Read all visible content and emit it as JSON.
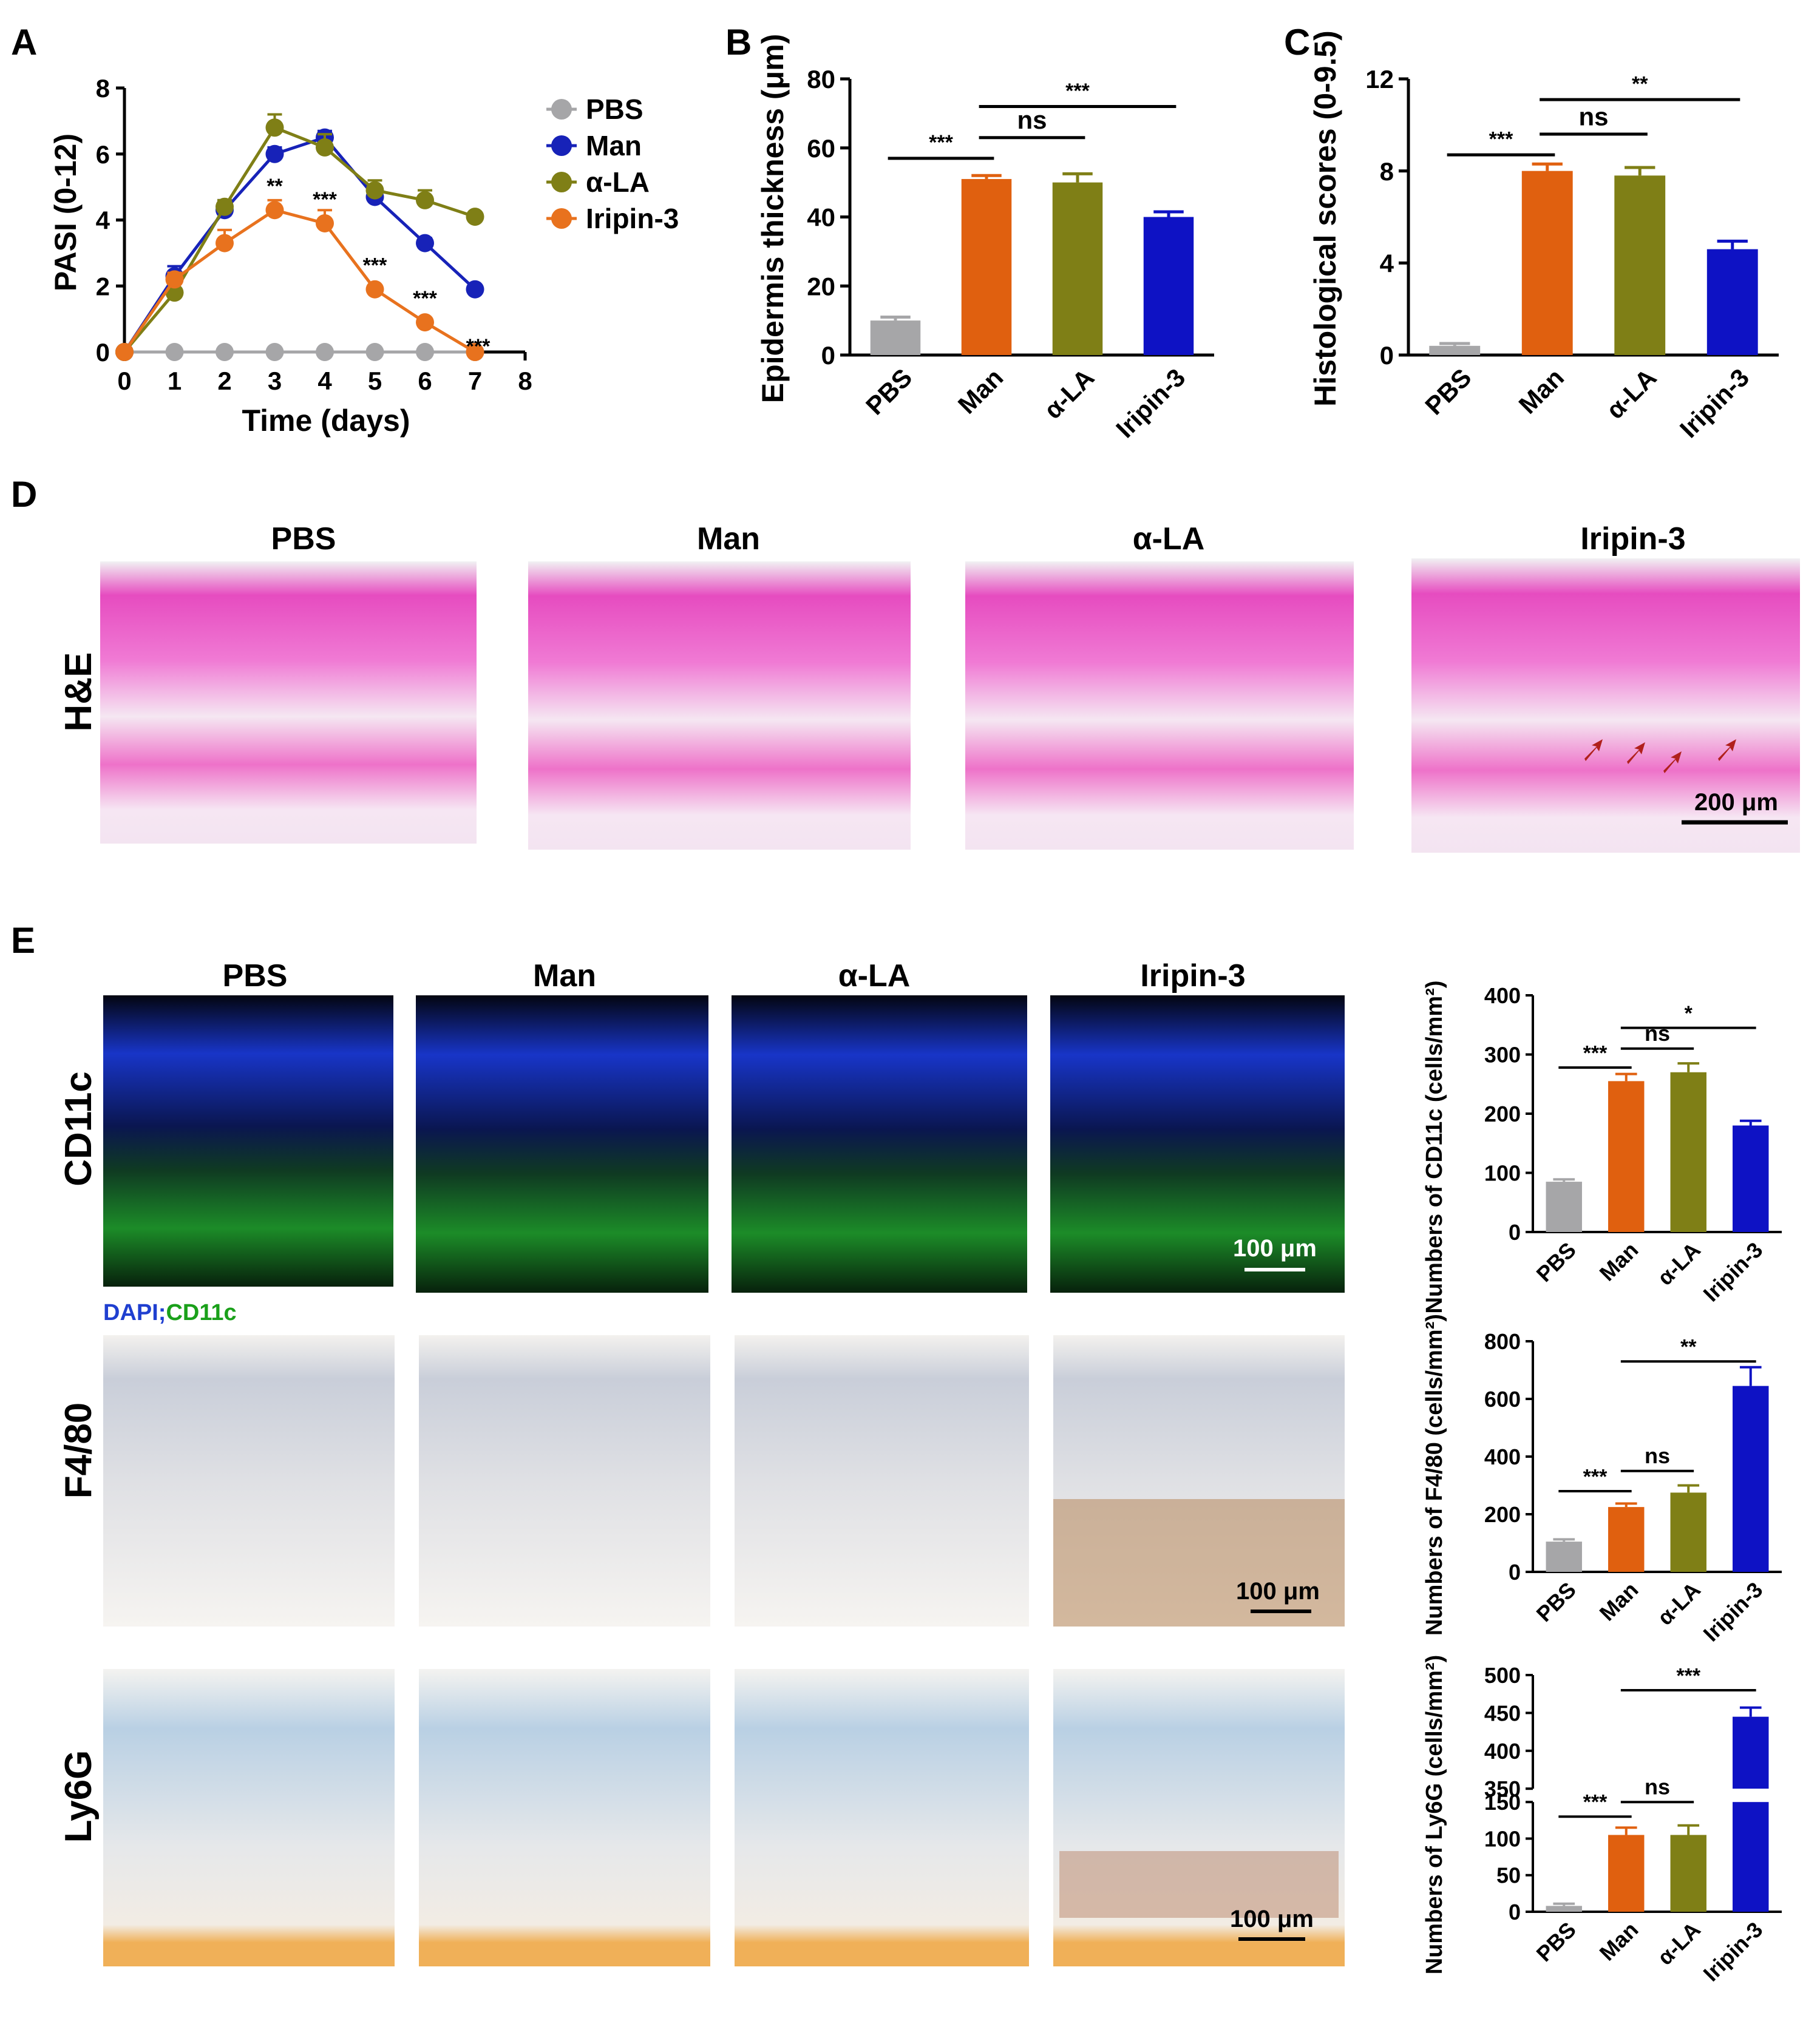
{
  "colors": {
    "PBS": "#a6a6a8",
    "Man": "#e0600f",
    "α-LA": "#7f7f16",
    "Iripin-3": "#0e12c4",
    "Iripin-3-line": "#e8721e",
    "Man-line": "#1722b8",
    "dapi": "#1f3fd0",
    "cd11c": "#1aa01a"
  },
  "panels": {
    "A": "A",
    "B": "B",
    "C": "C",
    "D": "D",
    "E": "E"
  },
  "chart_data": [
    {
      "id": "A",
      "type": "line",
      "xlabel": "Time (days)",
      "ylabel": "PASI (0-12)",
      "xlim": [
        0,
        8
      ],
      "ylim": [
        0,
        8
      ],
      "xticks": [
        "0",
        "1",
        "2",
        "3",
        "4",
        "5",
        "6",
        "7",
        "8"
      ],
      "yticks": [
        "0",
        "2",
        "4",
        "6",
        "8"
      ],
      "x": [
        0,
        1,
        2,
        3,
        4,
        5,
        6,
        7
      ],
      "legend_position": "right",
      "series": [
        {
          "name": "PBS",
          "color_key": "PBS",
          "values": [
            0,
            0,
            0,
            0,
            0,
            0,
            0,
            0
          ],
          "err": [
            0,
            0,
            0,
            0,
            0,
            0,
            0,
            0
          ]
        },
        {
          "name": "Man",
          "color_key": "Man-line",
          "values": [
            0,
            2.3,
            4.3,
            6.0,
            6.5,
            4.7,
            3.3,
            1.9
          ],
          "err": [
            0,
            0.3,
            0.3,
            0.2,
            0.2,
            0.3,
            0.15,
            0.1
          ]
        },
        {
          "name": "α-LA",
          "color_key": "α-LA",
          "values": [
            0,
            1.8,
            4.4,
            6.8,
            6.2,
            4.9,
            4.6,
            4.1
          ],
          "err": [
            0,
            0.3,
            0.2,
            0.4,
            0.4,
            0.3,
            0.3,
            0.1
          ]
        },
        {
          "name": "Iripin-3",
          "color_key": "Iripin-3-line",
          "values": [
            0,
            2.2,
            3.3,
            4.3,
            3.9,
            1.9,
            0.9,
            0
          ],
          "err": [
            0,
            0.2,
            0.4,
            0.3,
            0.4,
            0.1,
            0.1,
            0
          ]
        }
      ],
      "annotations": [
        {
          "x": 3,
          "y": 4.3,
          "text": "**"
        },
        {
          "x": 4,
          "y": 3.9,
          "text": "***"
        },
        {
          "x": 5,
          "y": 1.9,
          "text": "***"
        },
        {
          "x": 6,
          "y": 0.9,
          "text": "***"
        },
        {
          "x": 7,
          "y": 0,
          "text": "***"
        }
      ]
    },
    {
      "id": "B",
      "type": "bar",
      "ylabel": "Epidermis thickness (μm)",
      "ylim": [
        0,
        80
      ],
      "yticks": [
        "0",
        "20",
        "40",
        "60",
        "80"
      ],
      "categories": [
        "PBS",
        "Man",
        "α-LA",
        "Iripin-3"
      ],
      "values": [
        10,
        51,
        50,
        40
      ],
      "err": [
        1,
        1,
        2.5,
        1.5
      ],
      "brackets": [
        {
          "from": 0,
          "to": 1,
          "text": "***",
          "y": 57
        },
        {
          "from": 1,
          "to": 2,
          "text": "ns",
          "y": 63
        },
        {
          "from": 1,
          "to": 3,
          "text": "***",
          "y": 72
        }
      ]
    },
    {
      "id": "C",
      "type": "bar",
      "ylabel": "Histological scores (0-9.5)",
      "ylim": [
        0,
        12
      ],
      "yticks": [
        "0",
        "4",
        "8",
        "12"
      ],
      "categories": [
        "PBS",
        "Man",
        "α-LA",
        "Iripin-3"
      ],
      "values": [
        0.4,
        8.0,
        7.8,
        4.6
      ],
      "err": [
        0.1,
        0.3,
        0.35,
        0.35
      ],
      "brackets": [
        {
          "from": 0,
          "to": 1,
          "text": "***",
          "y": 8.7
        },
        {
          "from": 1,
          "to": 2,
          "text": "ns",
          "y": 9.6
        },
        {
          "from": 1,
          "to": 3,
          "text": "**",
          "y": 11.1
        }
      ]
    },
    {
      "id": "E1",
      "type": "bar",
      "ylabel": "Numbers of CD11c (cells/mm²)",
      "ylim": [
        0,
        400
      ],
      "yticks": [
        "0",
        "100",
        "200",
        "300",
        "400"
      ],
      "categories": [
        "PBS",
        "Man",
        "α-LA",
        "Iripin-3"
      ],
      "values": [
        85,
        255,
        270,
        180
      ],
      "err": [
        4,
        12,
        15,
        8
      ],
      "brackets": [
        {
          "from": 0,
          "to": 1,
          "text": "***",
          "y": 278
        },
        {
          "from": 1,
          "to": 2,
          "text": "ns",
          "y": 310
        },
        {
          "from": 1,
          "to": 3,
          "text": "*",
          "y": 345
        }
      ]
    },
    {
      "id": "E2",
      "type": "bar",
      "ylabel": "Numbers of F4/80 (cells/mm²)",
      "ylim": [
        0,
        800
      ],
      "yticks": [
        "0",
        "200",
        "400",
        "600",
        "800"
      ],
      "categories": [
        "PBS",
        "Man",
        "α-LA",
        "Iripin-3"
      ],
      "values": [
        105,
        225,
        275,
        645
      ],
      "err": [
        8,
        12,
        25,
        65
      ],
      "brackets": [
        {
          "from": 0,
          "to": 1,
          "text": "***",
          "y": 280
        },
        {
          "from": 1,
          "to": 2,
          "text": "ns",
          "y": 350
        },
        {
          "from": 1,
          "to": 3,
          "text": "**",
          "y": 730
        }
      ]
    },
    {
      "id": "E3",
      "type": "bar",
      "ylabel": "Numbers of Ly6G (cells/mm²)",
      "broken_axis": {
        "lower": [
          0,
          150
        ],
        "upper": [
          350,
          500
        ]
      },
      "yticks": [
        "0",
        "50",
        "100",
        "150",
        "350",
        "400",
        "450",
        "500"
      ],
      "categories": [
        "PBS",
        "Man",
        "α-LA",
        "Iripin-3"
      ],
      "values": [
        8,
        105,
        105,
        445
      ],
      "err": [
        3,
        10,
        13,
        12
      ],
      "brackets": [
        {
          "from": 0,
          "to": 1,
          "text": "***",
          "y": 130
        },
        {
          "from": 1,
          "to": 2,
          "text": "ns",
          "y": 150
        },
        {
          "from": 1,
          "to": 3,
          "text": "***",
          "y": 480
        }
      ]
    }
  ],
  "panelD": {
    "columns": [
      "PBS",
      "Man",
      "α-LA",
      "Iripin-3"
    ],
    "row_label": "H&E",
    "scale_bar": "200 μm"
  },
  "panelE": {
    "columns": [
      "PBS",
      "Man",
      "α-LA",
      "Iripin-3"
    ],
    "rows": [
      "CD11c",
      "F4/80",
      "Ly6G"
    ],
    "stain_legend_dapi": "DAPI;",
    "stain_legend_cd11c": "CD11c",
    "scale_bar": "100 μm"
  }
}
